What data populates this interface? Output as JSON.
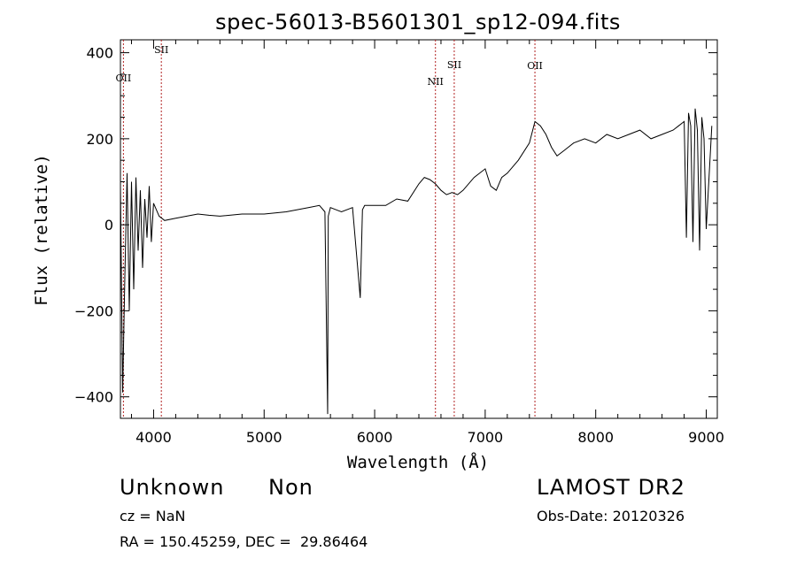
{
  "chart_data": {
    "type": "line",
    "title": "spec-56013-B5601301_sp12-094.fits",
    "xlabel": "Wavelength (Å)",
    "ylabel": "Flux (relative)",
    "xlim": [
      3700,
      9100
    ],
    "ylim": [
      -450,
      430
    ],
    "xticks": [
      4000,
      5000,
      6000,
      7000,
      8000,
      9000
    ],
    "yticks": [
      -400,
      -200,
      0,
      200,
      400
    ],
    "line_color": "#000000",
    "marker_color": "#b22222",
    "grid": false,
    "series": [
      {
        "x": [
          3700,
          3720,
          3740,
          3760,
          3780,
          3800,
          3820,
          3840,
          3860,
          3880,
          3900,
          3920,
          3940,
          3960,
          3980,
          4000,
          4050,
          4100,
          4200,
          4300,
          4400,
          4500,
          4600,
          4800,
          5000,
          5200,
          5400,
          5500,
          5550,
          5575,
          5580,
          5600,
          5700,
          5800,
          5870,
          5890,
          5910,
          6000,
          6100,
          6200,
          6300,
          6400,
          6450,
          6500,
          6550,
          6600,
          6650,
          6700,
          6750,
          6800,
          6900,
          7000,
          7050,
          7100,
          7150,
          7200,
          7300,
          7400,
          7450,
          7500,
          7550,
          7600,
          7650,
          7700,
          7750,
          7800,
          7900,
          8000,
          8100,
          8200,
          8300,
          8400,
          8500,
          8600,
          8700,
          8750,
          8800,
          8820,
          8840,
          8860,
          8880,
          8900,
          8920,
          8940,
          8960,
          8980,
          9000,
          9050
        ],
        "y": [
          90,
          -390,
          -120,
          120,
          -200,
          100,
          -150,
          110,
          -60,
          80,
          -100,
          60,
          -30,
          90,
          -40,
          50,
          20,
          10,
          15,
          20,
          25,
          22,
          20,
          25,
          25,
          30,
          40,
          45,
          30,
          -440,
          20,
          40,
          30,
          40,
          -170,
          35,
          45,
          45,
          45,
          60,
          55,
          95,
          110,
          105,
          95,
          80,
          70,
          75,
          70,
          80,
          110,
          130,
          90,
          80,
          110,
          120,
          150,
          190,
          240,
          230,
          210,
          180,
          160,
          170,
          180,
          190,
          200,
          190,
          210,
          200,
          210,
          220,
          200,
          210,
          220,
          230,
          240,
          -30,
          260,
          230,
          -40,
          270,
          220,
          -60,
          250,
          200,
          -10,
          230
        ]
      }
    ],
    "line_markers": [
      {
        "label": "OII",
        "x": 3727
      },
      {
        "label": "SII",
        "x": 4070
      },
      {
        "label": "NII",
        "x": 6550
      },
      {
        "label": "SII",
        "x": 6720
      },
      {
        "label": "OII",
        "x": 7450
      }
    ]
  },
  "footer": {
    "class_label": "Unknown",
    "subclass_label": "Non",
    "survey": "LAMOST DR2",
    "cz": "cz = NaN",
    "obs_date": "Obs-Date: 20120326",
    "radec": "RA = 150.45259, DEC =  29.86464"
  }
}
